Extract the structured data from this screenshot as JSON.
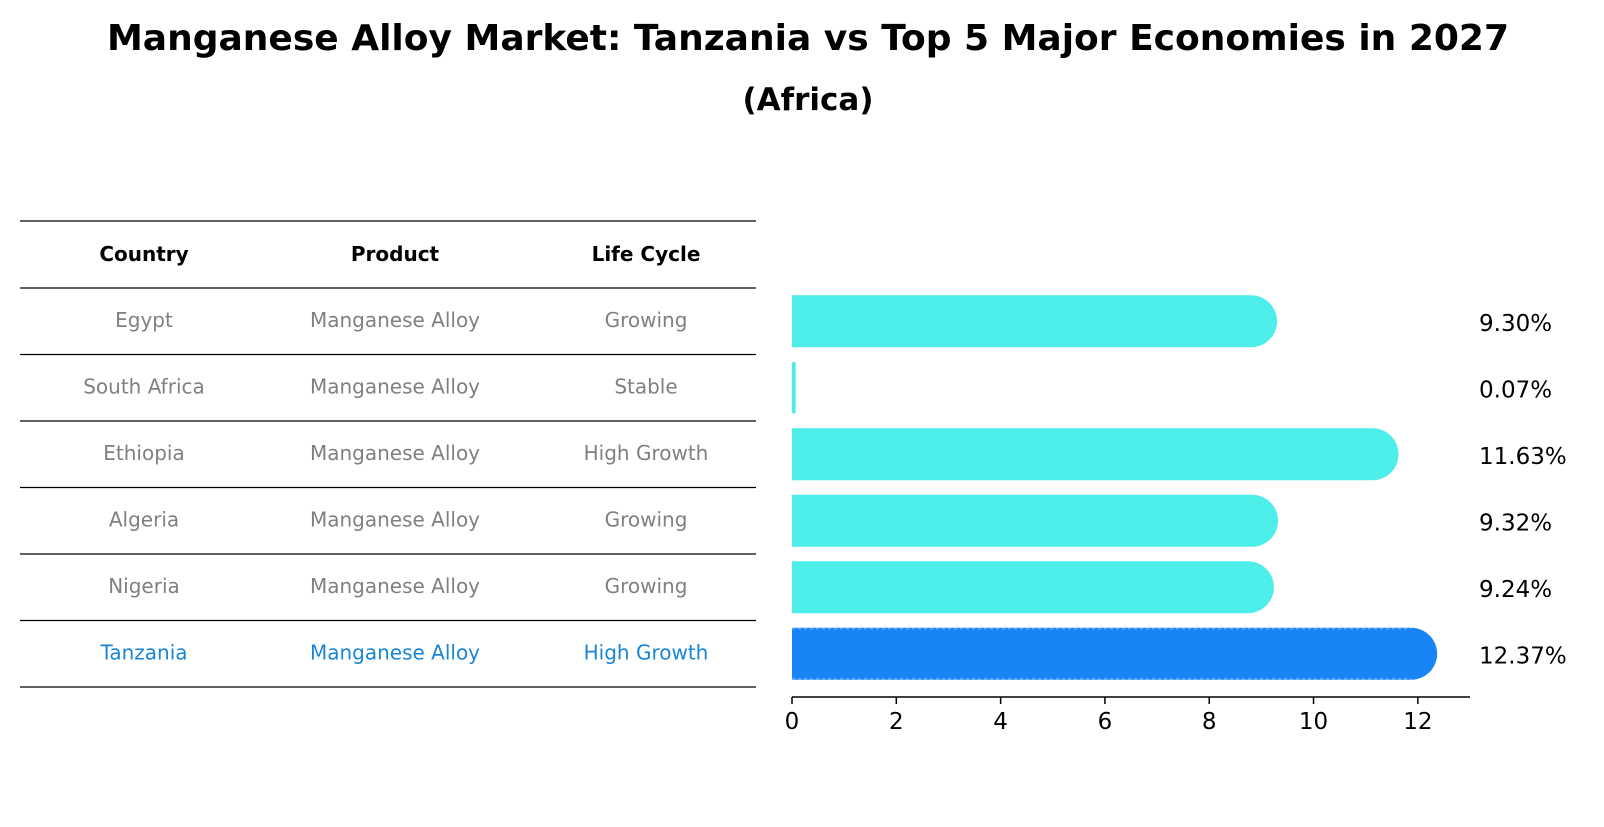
{
  "chart_data": {
    "type": "bar",
    "orientation": "horizontal",
    "title": "Manganese Alloy Market: Tanzania vs Top 5 Major Economies in 2027",
    "subtitle": "(Africa)",
    "table": {
      "headers": [
        "Country",
        "Product",
        "Life Cycle"
      ],
      "rows": [
        [
          "Egypt",
          "Manganese Alloy",
          "Growing"
        ],
        [
          "South Africa",
          "Manganese Alloy",
          "Stable"
        ],
        [
          "Ethiopia",
          "Manganese Alloy",
          "High Growth"
        ],
        [
          "Algeria",
          "Manganese Alloy",
          "Growing"
        ],
        [
          "Nigeria",
          "Manganese Alloy",
          "Growing"
        ],
        [
          "Tanzania",
          "Manganese Alloy",
          "High Growth"
        ]
      ],
      "highlight_row": 5
    },
    "categories": [
      "Egypt",
      "South Africa",
      "Ethiopia",
      "Algeria",
      "Nigeria",
      "Tanzania"
    ],
    "values": [
      9.3,
      0.07,
      11.63,
      9.32,
      9.24,
      12.37
    ],
    "value_labels": [
      "9.30%",
      "0.07%",
      "11.63%",
      "9.32%",
      "9.24%",
      "12.37%"
    ],
    "xlim": [
      0,
      13
    ],
    "xticks": [
      0,
      2,
      4,
      6,
      8,
      10,
      12
    ],
    "xlabel": "",
    "ylabel": "",
    "grid": false,
    "colors": {
      "bar": "#4DEEEA",
      "highlight_bar": "#1984F5",
      "row_text": "#808080",
      "highlight_text": "#1A85D6",
      "header_text": "#000000",
      "rule": "#000000"
    }
  }
}
